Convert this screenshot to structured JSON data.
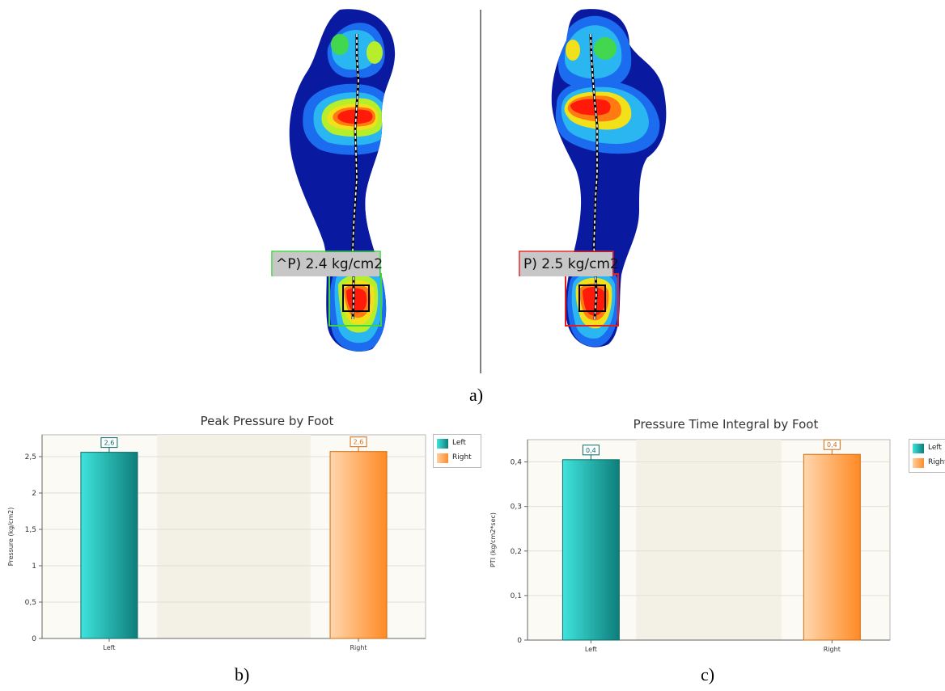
{
  "figure": {
    "panel_a": {
      "caption": "a)",
      "left_peak_label": "^P) 2.4 kg/cm2",
      "right_peak_label": "P) 2.5 kg/cm2"
    },
    "panel_b": {
      "caption": "b)"
    },
    "panel_c": {
      "caption": "c)"
    }
  },
  "colors": {
    "left_series": "#1ec9c4",
    "right_series": "#ffa552",
    "left_box": "#3dd43d",
    "right_box": "#e02020",
    "plot_bg": "#f3f1e6"
  },
  "chart_data": [
    {
      "type": "bar",
      "title": "Peak Pressure by Foot",
      "xlabel": "",
      "ylabel": "Pressure (kg/cm2)",
      "categories": [
        "Left",
        "Right"
      ],
      "values": [
        2.56,
        2.57
      ],
      "data_labels": [
        "2,6",
        "2,6"
      ],
      "ylim": [
        0,
        2.8
      ],
      "yticks": [
        0,
        0.5,
        1,
        1.5,
        2,
        2.5
      ],
      "ytick_labels": [
        "0",
        "0,5",
        "1",
        "1,5",
        "2",
        "2,5"
      ],
      "legend": [
        "Left",
        "Right"
      ],
      "legend_position": "top-right",
      "grid": true
    },
    {
      "type": "bar",
      "title": "Pressure Time Integral by Foot",
      "xlabel": "",
      "ylabel": "PTI (kg/cm2*sec)",
      "categories": [
        "Left",
        "Right"
      ],
      "values": [
        0.405,
        0.417
      ],
      "data_labels": [
        "0,4",
        "0,4"
      ],
      "ylim": [
        0,
        0.45
      ],
      "yticks": [
        0,
        0.1,
        0.2,
        0.3,
        0.4
      ],
      "ytick_labels": [
        "0",
        "0,1",
        "0,2",
        "0,3",
        "0,4"
      ],
      "legend": [
        "Left",
        "Right"
      ],
      "legend_position": "top-right",
      "grid": true
    }
  ]
}
